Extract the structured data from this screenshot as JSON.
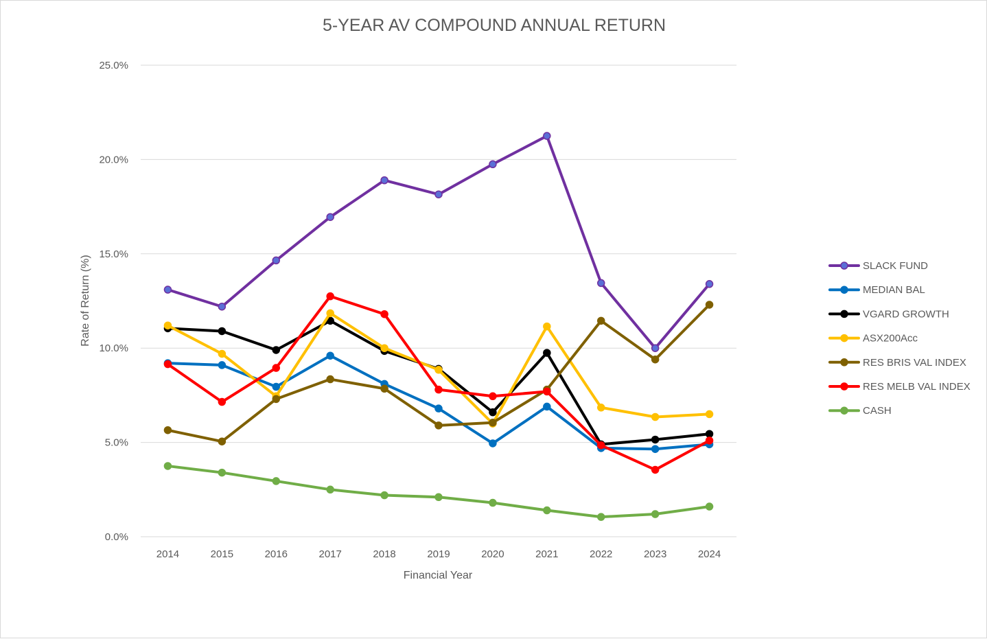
{
  "chart_data": {
    "type": "line",
    "title": "5-YEAR AV COMPOUND ANNUAL RETURN",
    "xlabel": "Financial Year",
    "ylabel": "Rate of Return (%)",
    "x": [
      "2014",
      "2015",
      "2016",
      "2017",
      "2018",
      "2019",
      "2020",
      "2021",
      "2022",
      "2023",
      "2024"
    ],
    "ylim": [
      0,
      25
    ],
    "yticks": [
      {
        "value": 0,
        "label": "0.0%"
      },
      {
        "value": 5,
        "label": "5.0%"
      },
      {
        "value": 10,
        "label": "10.0%"
      },
      {
        "value": 15,
        "label": "15.0%"
      },
      {
        "value": 20,
        "label": "20.0%"
      },
      {
        "value": 25,
        "label": "25.0%"
      }
    ],
    "grid": true,
    "legend_position": "right",
    "series": [
      {
        "name": "SLACK FUND",
        "color": "#7030A0",
        "marker_color": "#5B6FD6",
        "values": [
          13.1,
          12.2,
          14.65,
          16.95,
          18.9,
          18.15,
          19.75,
          21.25,
          13.45,
          10.0,
          13.4
        ]
      },
      {
        "name": "MEDIAN BAL",
        "color": "#0070C0",
        "marker_color": "#0070C0",
        "values": [
          9.2,
          9.1,
          7.95,
          9.6,
          8.1,
          6.8,
          4.95,
          6.9,
          4.7,
          4.65,
          4.9
        ]
      },
      {
        "name": "VGARD GROWTH",
        "color": "#000000",
        "marker_color": "#000000",
        "values": [
          11.05,
          10.9,
          9.9,
          11.45,
          9.85,
          8.9,
          6.6,
          9.75,
          4.9,
          5.15,
          5.45
        ]
      },
      {
        "name": "ASX200Acc",
        "color": "#FFC000",
        "marker_color": "#FFC000",
        "values": [
          11.2,
          9.7,
          7.45,
          11.85,
          10.0,
          8.85,
          6.0,
          11.15,
          6.85,
          6.35,
          6.5
        ]
      },
      {
        "name": "RES BRIS VAL INDEX",
        "color": "#7F6000",
        "marker_color": "#7F6000",
        "values": [
          5.65,
          5.05,
          7.3,
          8.35,
          7.85,
          5.9,
          6.05,
          7.8,
          11.45,
          9.4,
          12.3
        ]
      },
      {
        "name": "RES MELB VAL INDEX",
        "color": "#FF0000",
        "marker_color": "#FF0000",
        "values": [
          9.15,
          7.15,
          8.95,
          12.75,
          11.8,
          7.8,
          7.45,
          7.7,
          4.85,
          3.55,
          5.1
        ]
      },
      {
        "name": "CASH",
        "color": "#70AD47",
        "marker_color": "#70AD47",
        "values": [
          3.75,
          3.4,
          2.95,
          2.5,
          2.2,
          2.1,
          1.8,
          1.4,
          1.05,
          1.2,
          1.6
        ]
      }
    ]
  }
}
